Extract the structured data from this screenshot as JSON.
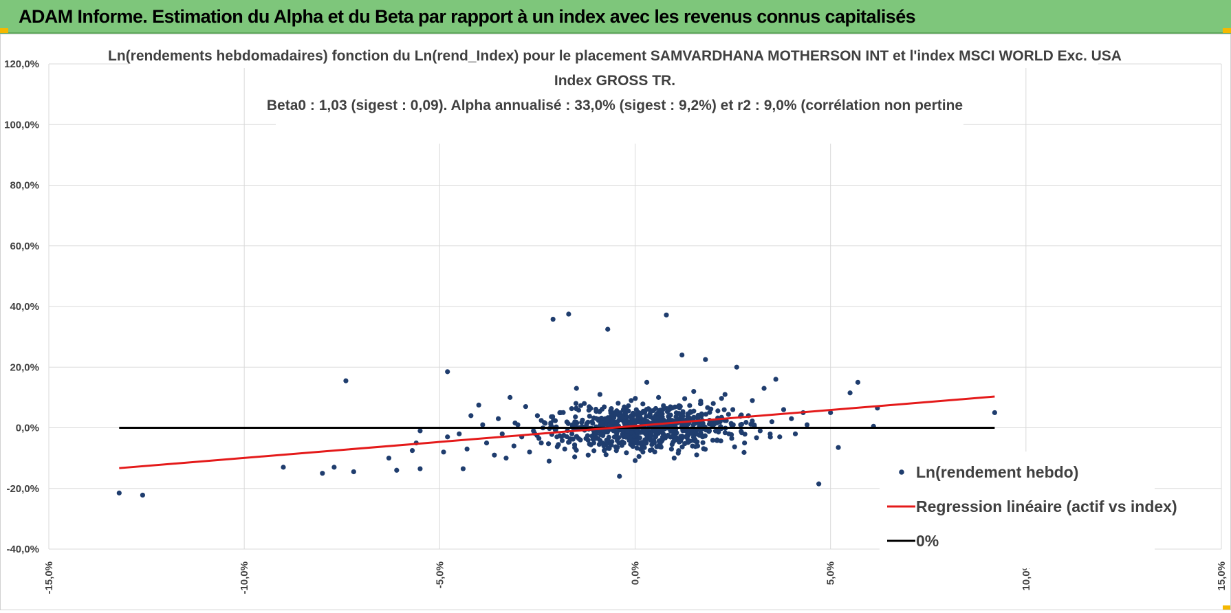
{
  "header": {
    "title": "ADAM Informe. Estimation du Alpha et du Beta par rapport à un index avec les revenus connus capitalisés"
  },
  "colors": {
    "header_bg": "#7ec67b",
    "points": "#1f3d6e",
    "regression": "#e41a1a",
    "zero_line": "#000000",
    "grid": "#d9d9d9"
  },
  "chart_data": {
    "type": "scatter",
    "title_lines": [
      "Ln(rendements hebdomadaires) fonction du Ln(rend_Index) pour le placement SAMVARDHANA MOTHERSON INT et l'index MSCI WORLD Exc. USA",
      "Index GROSS TR.",
      "Beta0 : 1,03 (sigest : 0,09).  Alpha annualisé : 33,0% (sigest : 9,2%) et r2 : 9,0% (corrélation non pertine"
    ],
    "xlim": [
      -0.15,
      0.15
    ],
    "ylim": [
      -0.4,
      1.2
    ],
    "x_ticks": [
      -0.15,
      -0.1,
      -0.05,
      0.0,
      0.05,
      0.1,
      0.15
    ],
    "y_ticks": [
      -0.4,
      -0.2,
      0.0,
      0.2,
      0.4,
      0.6,
      0.8,
      1.0,
      1.2
    ],
    "x_tick_labels": [
      "-15,0%",
      "-10,0%",
      "-5,0%",
      "0,0%",
      "5,0%",
      "10,0%",
      "15,0%"
    ],
    "y_tick_labels": [
      "-40,0%",
      "-20,0%",
      "0,0%",
      "20,0%",
      "40,0%",
      "60,0%",
      "80,0%",
      "100,0%",
      "120,0%"
    ],
    "grid": true,
    "legend_position": "bottom-right",
    "series": [
      {
        "name": "Ln(rendement hebdo)",
        "kind": "scatter",
        "points": [
          [
            -0.132,
            -0.215
          ],
          [
            -0.126,
            -0.222
          ],
          [
            -0.09,
            -0.13
          ],
          [
            -0.08,
            -0.15
          ],
          [
            -0.077,
            -0.13
          ],
          [
            -0.074,
            0.155
          ],
          [
            -0.072,
            -0.145
          ],
          [
            -0.063,
            -0.1
          ],
          [
            -0.061,
            -0.14
          ],
          [
            -0.057,
            -0.075
          ],
          [
            -0.056,
            -0.05
          ],
          [
            -0.055,
            -0.01
          ],
          [
            -0.055,
            -0.135
          ],
          [
            -0.049,
            -0.08
          ],
          [
            -0.048,
            0.185
          ],
          [
            -0.048,
            -0.03
          ],
          [
            -0.045,
            -0.02
          ],
          [
            -0.044,
            -0.135
          ],
          [
            -0.043,
            -0.07
          ],
          [
            -0.042,
            0.04
          ],
          [
            -0.04,
            0.075
          ],
          [
            -0.039,
            0.01
          ],
          [
            -0.038,
            -0.05
          ],
          [
            -0.036,
            -0.09
          ],
          [
            -0.035,
            0.03
          ],
          [
            -0.034,
            -0.02
          ],
          [
            -0.033,
            -0.1
          ],
          [
            -0.032,
            0.1
          ],
          [
            -0.031,
            -0.06
          ],
          [
            -0.03,
            0.01
          ],
          [
            -0.029,
            -0.03
          ],
          [
            -0.028,
            0.07
          ],
          [
            -0.027,
            -0.08
          ],
          [
            -0.026,
            -0.01
          ],
          [
            -0.025,
            0.04
          ],
          [
            -0.024,
            -0.05
          ],
          [
            -0.023,
            0.015
          ],
          [
            -0.022,
            -0.11
          ],
          [
            -0.021,
            0.358
          ],
          [
            -0.02,
            -0.03
          ],
          [
            -0.019,
            0.05
          ],
          [
            -0.018,
            -0.07
          ],
          [
            -0.017,
            0.375
          ],
          [
            -0.016,
            0.01
          ],
          [
            -0.015,
            0.13
          ],
          [
            -0.014,
            -0.04
          ],
          [
            -0.013,
            0.08
          ],
          [
            -0.012,
            -0.09
          ],
          [
            -0.011,
            0.02
          ],
          [
            -0.01,
            -0.02
          ],
          [
            -0.009,
            0.11
          ],
          [
            -0.008,
            -0.06
          ],
          [
            -0.007,
            0.325
          ],
          [
            -0.006,
            0.04
          ],
          [
            -0.005,
            -0.03
          ],
          [
            -0.004,
            -0.16
          ],
          [
            -0.003,
            0.06
          ],
          [
            -0.002,
            -0.01
          ],
          [
            -0.001,
            0.09
          ],
          [
            0.0,
            -0.05
          ],
          [
            0.001,
            0.02
          ],
          [
            0.002,
            -0.08
          ],
          [
            0.003,
            0.15
          ],
          [
            0.004,
            -0.02
          ],
          [
            0.005,
            0.03
          ],
          [
            0.006,
            0.1
          ],
          [
            0.007,
            -0.04
          ],
          [
            0.008,
            0.372
          ],
          [
            0.009,
            0.01
          ],
          [
            0.01,
            -0.1
          ],
          [
            0.011,
            0.07
          ],
          [
            0.012,
            0.24
          ],
          [
            0.013,
            -0.03
          ],
          [
            0.014,
            0.05
          ],
          [
            0.015,
            0.12
          ],
          [
            0.016,
            -0.06
          ],
          [
            0.017,
            0.02
          ],
          [
            0.018,
            0.225
          ],
          [
            0.019,
            -0.01
          ],
          [
            0.02,
            0.08
          ],
          [
            0.021,
            -0.04
          ],
          [
            0.022,
            0.03
          ],
          [
            0.023,
            0.11
          ],
          [
            0.024,
            -0.02
          ],
          [
            0.025,
            0.06
          ],
          [
            0.026,
            0.2
          ],
          [
            0.027,
            0.01
          ],
          [
            0.028,
            -0.05
          ],
          [
            0.029,
            0.04
          ],
          [
            0.03,
            0.09
          ],
          [
            0.032,
            -0.01
          ],
          [
            0.033,
            0.13
          ],
          [
            0.035,
            0.02
          ],
          [
            0.036,
            0.16
          ],
          [
            0.037,
            -0.03
          ],
          [
            0.038,
            0.06
          ],
          [
            0.04,
            0.03
          ],
          [
            0.041,
            -0.02
          ],
          [
            0.043,
            0.05
          ],
          [
            0.044,
            0.01
          ],
          [
            0.047,
            -0.185
          ],
          [
            0.05,
            0.05
          ],
          [
            0.052,
            -0.065
          ],
          [
            0.055,
            0.115
          ],
          [
            0.057,
            0.15
          ],
          [
            0.061,
            0.005
          ],
          [
            0.062,
            0.065
          ],
          [
            0.092,
            0.05
          ]
        ],
        "dense_cluster": {
          "x_range": [
            -0.03,
            0.03
          ],
          "y_range": [
            -0.12,
            0.12
          ],
          "approx_count": 700
        }
      },
      {
        "name": "Regression linéaire (actif vs index)",
        "kind": "line",
        "x": [
          -0.132,
          0.092
        ],
        "y": [
          -0.133,
          0.103
        ]
      },
      {
        "name": "0%",
        "kind": "line",
        "x": [
          -0.132,
          0.092
        ],
        "y": [
          0.0,
          0.0
        ]
      }
    ]
  }
}
